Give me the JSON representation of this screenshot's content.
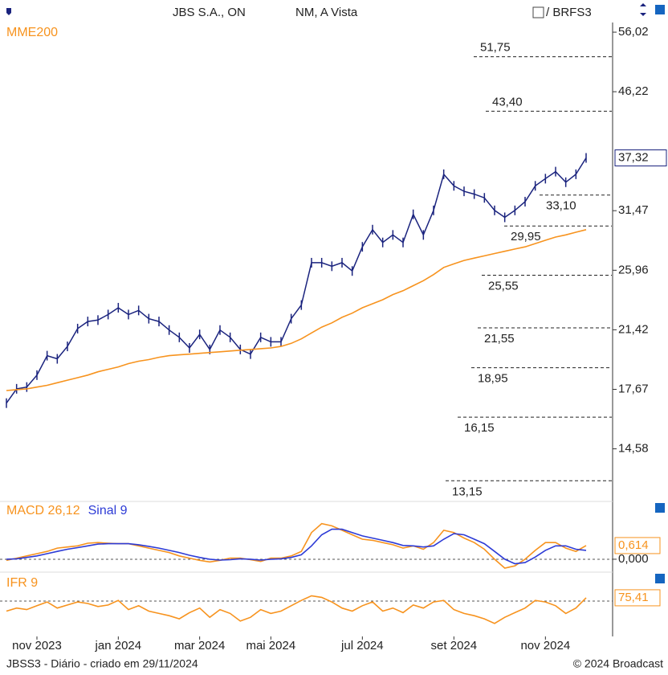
{
  "header": {
    "title": "JBS S.A., ON",
    "segment": "NM, A Vista",
    "compare": "/ BRFS3"
  },
  "footer": {
    "left": "JBSS3 - Diário - criado em 29/11/2024",
    "right": "© 2024 Broadcast"
  },
  "chart_data": [
    {
      "type": "line",
      "log_scale": true,
      "categories": [
        null,
        null,
        null,
        "nov 2023",
        null,
        null,
        null,
        null,
        null,
        null,
        null,
        "jan 2024",
        null,
        null,
        null,
        null,
        null,
        null,
        null,
        "mar 2024",
        null,
        null,
        null,
        null,
        null,
        null,
        "mai 2024",
        null,
        null,
        null,
        null,
        null,
        null,
        null,
        null,
        "jul 2024",
        null,
        null,
        null,
        null,
        null,
        null,
        null,
        null,
        "set 2024",
        null,
        null,
        null,
        null,
        null,
        null,
        null,
        null,
        "nov 2024",
        null,
        null,
        null,
        null
      ],
      "series": [
        {
          "color": "#1a237e",
          "values": [
            16.9,
            17.7,
            17.8,
            18.5,
            19.7,
            19.5,
            20.3,
            21.5,
            22.0,
            22.1,
            22.5,
            23.0,
            22.5,
            22.8,
            22.2,
            22.0,
            21.4,
            20.9,
            20.2,
            21.1,
            20.1,
            21.4,
            20.9,
            20.1,
            19.8,
            20.9,
            20.6,
            20.6,
            22.2,
            23.2,
            26.6,
            26.6,
            26.3,
            26.6,
            25.9,
            28.0,
            29.6,
            28.4,
            29.1,
            28.4,
            31.1,
            29.1,
            31.5,
            35.4,
            34.1,
            33.5,
            33.2,
            32.8,
            31.5,
            30.8,
            31.5,
            32.4,
            34.1,
            34.9,
            35.7,
            34.5,
            35.4,
            37.32
          ],
          "last_label": {
            "value": 37.32,
            "label": "37,32"
          }
        },
        {
          "name": "MME200",
          "color": "#f7931e",
          "values": [
            17.6,
            17.65,
            17.7,
            17.8,
            17.9,
            18.05,
            18.2,
            18.35,
            18.5,
            18.7,
            18.85,
            19.0,
            19.2,
            19.35,
            19.45,
            19.6,
            19.7,
            19.75,
            19.8,
            19.85,
            19.9,
            19.95,
            20.0,
            20.05,
            20.1,
            20.15,
            20.2,
            20.3,
            20.5,
            20.8,
            21.2,
            21.6,
            21.9,
            22.3,
            22.6,
            23.0,
            23.3,
            23.6,
            24.0,
            24.3,
            24.7,
            25.1,
            25.6,
            26.2,
            26.5,
            26.8,
            27.0,
            27.2,
            27.4,
            27.6,
            27.8,
            28.0,
            28.3,
            28.6,
            28.9,
            29.1,
            29.35,
            29.6
          ]
        }
      ],
      "ylim": [
        12.43,
        57.8
      ],
      "yticks": [
        {
          "value": 14.58,
          "label": "14,58"
        },
        {
          "value": 17.67,
          "label": "17,67"
        },
        {
          "value": 21.42,
          "label": "21,42"
        },
        {
          "value": 25.96,
          "label": "25,96"
        },
        {
          "value": 31.47,
          "label": "31,47"
        },
        {
          "value": 46.22,
          "label": "46,22"
        },
        {
          "value": 56.02,
          "label": "56,02"
        }
      ],
      "levels": [
        {
          "value": 51.75,
          "label": "51,75"
        },
        {
          "value": 43.4,
          "label": "43,40"
        },
        {
          "value": 33.1,
          "label": "33,10"
        },
        {
          "value": 29.95,
          "label": "29,95"
        },
        {
          "value": 25.55,
          "label": "25,55"
        },
        {
          "value": 21.55,
          "label": "21,55"
        },
        {
          "value": 18.95,
          "label": "18,95"
        },
        {
          "value": 16.15,
          "label": "16,15"
        },
        {
          "value": 13.15,
          "label": "13,15"
        }
      ]
    },
    {
      "type": "line",
      "series": [
        {
          "name": "MACD 26,12",
          "color": "#f7931e",
          "values": [
            -0.05,
            0.05,
            0.15,
            0.25,
            0.35,
            0.5,
            0.55,
            0.6,
            0.72,
            0.75,
            0.72,
            0.7,
            0.7,
            0.6,
            0.5,
            0.4,
            0.3,
            0.15,
            0.05,
            -0.05,
            -0.12,
            -0.05,
            0.05,
            0.05,
            -0.02,
            -0.1,
            0.05,
            0.05,
            0.15,
            0.35,
            1.2,
            1.6,
            1.5,
            1.3,
            1.1,
            0.9,
            0.85,
            0.75,
            0.65,
            0.5,
            0.6,
            0.45,
            0.75,
            1.3,
            1.2,
            0.95,
            0.75,
            0.45,
            0.0,
            -0.4,
            -0.3,
            0.0,
            0.4,
            0.75,
            0.75,
            0.5,
            0.35,
            0.614
          ],
          "last_label": {
            "value": 0.614,
            "label": "0,614"
          }
        },
        {
          "name": "Sinal 9",
          "color": "#2d3bd6",
          "values": [
            0.0,
            0.02,
            0.08,
            0.15,
            0.25,
            0.35,
            0.45,
            0.52,
            0.6,
            0.68,
            0.7,
            0.7,
            0.7,
            0.65,
            0.58,
            0.5,
            0.4,
            0.3,
            0.18,
            0.08,
            0.0,
            -0.04,
            -0.02,
            0.02,
            0.0,
            -0.04,
            0.0,
            0.02,
            0.08,
            0.2,
            0.6,
            1.1,
            1.35,
            1.35,
            1.2,
            1.05,
            0.95,
            0.85,
            0.75,
            0.62,
            0.6,
            0.55,
            0.6,
            0.9,
            1.15,
            1.1,
            0.9,
            0.7,
            0.35,
            0.0,
            -0.2,
            -0.15,
            0.1,
            0.4,
            0.6,
            0.6,
            0.45,
            0.4
          ]
        }
      ],
      "ylim": [
        -0.58,
        2.02
      ],
      "yticks": [
        {
          "value": 0,
          "label": "0,000"
        }
      ]
    },
    {
      "type": "line",
      "series": [
        {
          "name": "IFR 9",
          "color": "#f7931e",
          "values": [
            58,
            62,
            60,
            65,
            70,
            62,
            66,
            70,
            68,
            64,
            66,
            72,
            60,
            65,
            58,
            55,
            52,
            48,
            56,
            62,
            50,
            60,
            55,
            45,
            50,
            60,
            55,
            58,
            65,
            72,
            78,
            76,
            70,
            62,
            58,
            65,
            70,
            58,
            62,
            56,
            66,
            62,
            70,
            72,
            60,
            55,
            52,
            48,
            42,
            50,
            56,
            62,
            72,
            70,
            65,
            55,
            62,
            75.41
          ],
          "last_label": {
            "value": 75.41,
            "label": "75,41"
          }
        }
      ],
      "ylim": [
        25,
        90
      ]
    }
  ]
}
